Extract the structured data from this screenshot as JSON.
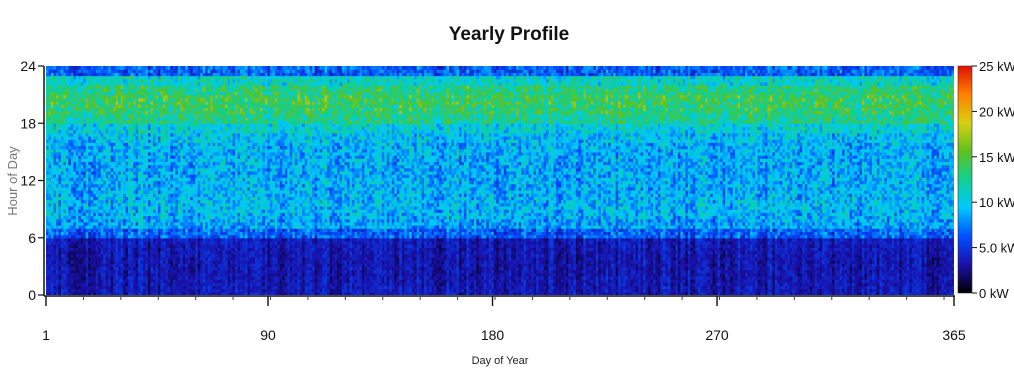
{
  "chart_data": {
    "type": "heatmap",
    "title": "Yearly Profile",
    "xlabel": "Day of Year",
    "ylabel": "Hour of Day",
    "xlim": [
      1,
      365
    ],
    "ylim": [
      0,
      24
    ],
    "x_ticks": [
      1,
      90,
      180,
      270,
      365
    ],
    "y_ticks": [
      0,
      6,
      12,
      18,
      24
    ],
    "colorbar": {
      "min": 0,
      "max": 25,
      "unit": "kW",
      "tick_labels": [
        "25 kW",
        "20 kW",
        "15 kW",
        "10 kW",
        "5.0 kW",
        "0 kW"
      ],
      "tick_values": [
        25,
        20,
        15,
        10,
        5,
        0
      ],
      "colormap": [
        "#000000",
        "#1a10a8",
        "#0050ff",
        "#00c8ff",
        "#10d090",
        "#60c020",
        "#d8d010",
        "#ff8000",
        "#e01000"
      ]
    },
    "hourly_mean_kw": [
      3.5,
      3.4,
      3.3,
      3.3,
      3.4,
      3.6,
      6.5,
      8.5,
      9.0,
      9.2,
      9.0,
      8.8,
      8.7,
      8.7,
      8.8,
      9.0,
      9.5,
      10.5,
      12.5,
      13.5,
      13.8,
      13.0,
      11.0,
      6.5
    ],
    "hourly_variation_kw": [
      1.0,
      1.0,
      1.0,
      1.0,
      1.0,
      1.0,
      2.0,
      2.5,
      2.5,
      2.5,
      2.5,
      2.5,
      2.5,
      2.5,
      2.5,
      2.5,
      2.5,
      2.5,
      2.8,
      3.0,
      3.0,
      2.8,
      2.5,
      2.0
    ]
  }
}
